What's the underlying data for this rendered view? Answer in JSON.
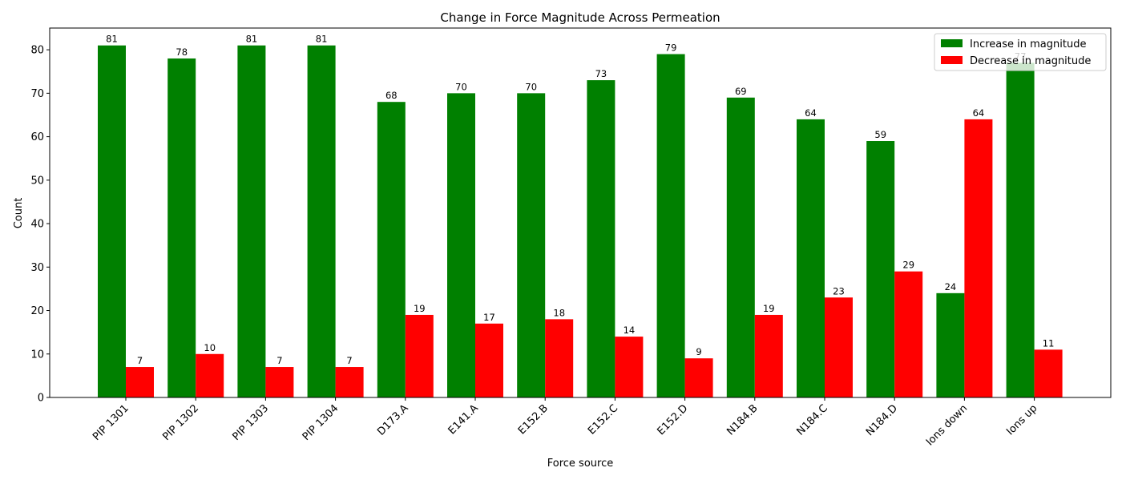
{
  "chart_data": {
    "type": "bar",
    "title": "Change in Force Magnitude Across Permeation",
    "xlabel": "Force source",
    "ylabel": "Count",
    "categories": [
      "PIP 1301",
      "PIP 1302",
      "PIP 1303",
      "PIP 1304",
      "D173.A",
      "E141.A",
      "E152.B",
      "E152.C",
      "E152.D",
      "N184.B",
      "N184.C",
      "N184.D",
      "Ions down",
      "Ions up"
    ],
    "series": [
      {
        "name": "Increase in magnitude",
        "color": "#008000",
        "values": [
          81,
          78,
          81,
          81,
          68,
          70,
          70,
          73,
          79,
          69,
          64,
          59,
          24,
          77
        ]
      },
      {
        "name": "Decrease in magnitude",
        "color": "#ff0000",
        "values": [
          7,
          10,
          7,
          7,
          19,
          17,
          18,
          14,
          9,
          19,
          23,
          29,
          64,
          11
        ]
      }
    ],
    "ylim": [
      0,
      85
    ],
    "yticks": [
      0,
      10,
      20,
      30,
      40,
      50,
      60,
      70,
      80
    ],
    "grid": false,
    "legend_position": "top-right"
  }
}
